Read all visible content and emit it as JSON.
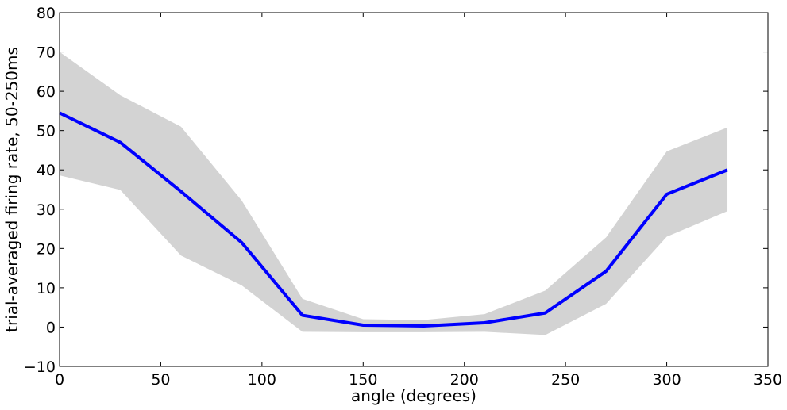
{
  "chart_data": {
    "type": "line",
    "title": "",
    "xlabel": "angle (degrees)",
    "ylabel": "trial-averaged firing rate, 50-250ms",
    "xlim": [
      0,
      350
    ],
    "ylim": [
      -10,
      80
    ],
    "xticks": [
      0,
      50,
      100,
      150,
      200,
      250,
      300,
      350
    ],
    "yticks": [
      -10,
      0,
      10,
      20,
      30,
      40,
      50,
      60,
      70,
      80
    ],
    "xtick_labels": [
      "0",
      "50",
      "100",
      "150",
      "200",
      "250",
      "300",
      "350"
    ],
    "ytick_labels": [
      "−10",
      "0",
      "10",
      "20",
      "30",
      "40",
      "50",
      "60",
      "70",
      "80"
    ],
    "grid": false,
    "legend": "none",
    "x": [
      0,
      30,
      60,
      90,
      120,
      150,
      180,
      210,
      240,
      270,
      300,
      330
    ],
    "series": [
      {
        "values": [
          54.5,
          47,
          34.5,
          21.5,
          3,
          0.5,
          0.3,
          1.1,
          3.6,
          14.2,
          33.8,
          40
        ],
        "lower": [
          38.6,
          34.9,
          18.2,
          10.6,
          -1.2,
          -1.3,
          -1.3,
          -1.2,
          -2,
          5.9,
          23,
          29.5
        ],
        "upper": [
          70,
          59,
          51,
          32.2,
          7.2,
          2,
          1.8,
          3.3,
          9.3,
          22.8,
          44.7,
          50.8
        ],
        "color": "#0000ff",
        "band_color": "#d3d3d3"
      }
    ]
  }
}
